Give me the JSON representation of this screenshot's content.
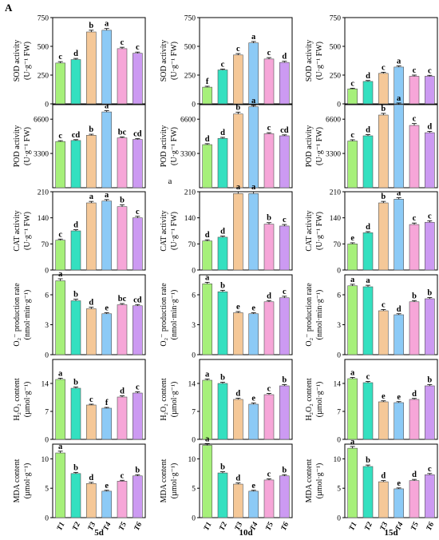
{
  "panel_label": "A",
  "chart_data": {
    "type": "bar",
    "categories": [
      "T1",
      "T2",
      "T3",
      "T4",
      "T5",
      "T6"
    ],
    "colors": [
      "#a6f07a",
      "#34e0c0",
      "#f5c898",
      "#8ccaf6",
      "#f6a6d8",
      "#cc9af2"
    ],
    "columns": [
      "5d",
      "10d",
      "15d"
    ],
    "rows": [
      {
        "ylabel_line1": "SOD activity",
        "ylabel_line2": "(U·g⁻¹ FW)",
        "ylim": [
          0,
          750
        ],
        "ticks": [
          0,
          250,
          500,
          750
        ],
        "panels": [
          {
            "values": [
              355,
              385,
              625,
              640,
              480,
              440
            ],
            "errors": [
              12,
              10,
              15,
              15,
              12,
              10
            ],
            "letters": [
              "c",
              "d",
              "b",
              "a",
              "c",
              "c"
            ]
          },
          {
            "values": [
              145,
              295,
              425,
              530,
              390,
              360
            ],
            "errors": [
              8,
              8,
              12,
              12,
              12,
              10
            ],
            "letters": [
              "f",
              "c",
              "c",
              "a",
              "c",
              "d"
            ]
          },
          {
            "values": [
              130,
              195,
              265,
              320,
              240,
              240
            ],
            "errors": [
              6,
              8,
              10,
              10,
              10,
              8
            ],
            "letters": [
              "c",
              "d",
              "c",
              "a",
              "c",
              "c"
            ]
          }
        ]
      },
      {
        "ylabel_line1": "POD activity",
        "ylabel_line2": "(U·g⁻¹ FW)",
        "ylim": [
          0,
          8000
        ],
        "ticks": [
          3300,
          6600
        ],
        "panels": [
          {
            "values": [
              4450,
              4550,
              5050,
              7300,
              4800,
              4650
            ],
            "errors": [
              80,
              80,
              100,
              120,
              100,
              80
            ],
            "letters": [
              "c",
              "cd",
              "b",
              "a",
              "bc",
              "cd"
            ]
          },
          {
            "values": [
              4150,
              4750,
              7100,
              7800,
              5200,
              5000
            ],
            "errors": [
              90,
              100,
              180,
              120,
              100,
              90
            ],
            "letters": [
              "d",
              "d",
              "b",
              "a",
              "c",
              "cd"
            ]
          },
          {
            "values": [
              4500,
              5000,
              7000,
              8000,
              6000,
              5300
            ],
            "errors": [
              120,
              120,
              160,
              160,
              180,
              120
            ],
            "letters": [
              "c",
              "d",
              "b",
              "a",
              "c",
              "d"
            ]
          }
        ],
        "annotation": {
          "panel": 1,
          "text": "a"
        }
      },
      {
        "ylabel_line1": "CAT activity",
        "ylabel_line2": "(U·g⁻¹ FW)",
        "ylim": [
          0,
          210
        ],
        "ticks": [
          0,
          70,
          140,
          210
        ],
        "panels": [
          {
            "values": [
              80,
              105,
              180,
              185,
              170,
              140
            ],
            "errors": [
              3,
              3,
              4,
              4,
              5,
              4
            ],
            "letters": [
              "c",
              "d",
              "a",
              "a",
              "b",
              "c"
            ]
          },
          {
            "values": [
              78,
              88,
              205,
              205,
              123,
              118
            ],
            "errors": [
              3,
              3,
              5,
              5,
              4,
              4
            ],
            "letters": [
              "d",
              "d",
              "a",
              "a",
              "b",
              "c"
            ]
          },
          {
            "values": [
              70,
              100,
              180,
              190,
              122,
              128
            ],
            "errors": [
              3,
              3,
              4,
              4,
              4,
              4
            ],
            "letters": [
              "e",
              "d",
              "b",
              "a",
              "c",
              "c"
            ]
          }
        ]
      },
      {
        "ylabel_line1": "O₂⁻ production rate",
        "ylabel_line2": "(nmol·min·g⁻¹)",
        "ylim": [
          0,
          8
        ],
        "ticks": [
          0,
          3,
          6
        ],
        "panels": [
          {
            "values": [
              7.4,
              5.4,
              4.6,
              4.1,
              5.0,
              4.9
            ],
            "errors": [
              0.2,
              0.15,
              0.15,
              0.1,
              0.12,
              0.12
            ],
            "letters": [
              "a",
              "b",
              "d",
              "e",
              "bc",
              "cd"
            ]
          },
          {
            "values": [
              7.1,
              6.3,
              4.2,
              4.1,
              5.3,
              5.7
            ],
            "errors": [
              0.15,
              0.15,
              0.12,
              0.1,
              0.12,
              0.15
            ],
            "letters": [
              "a",
              "b",
              "e",
              "e",
              "d",
              "c"
            ]
          },
          {
            "values": [
              6.9,
              6.8,
              4.4,
              4.0,
              5.3,
              5.6
            ],
            "errors": [
              0.15,
              0.15,
              0.12,
              0.1,
              0.12,
              0.12
            ],
            "letters": [
              "a",
              "a",
              "c",
              "d",
              "b",
              "b"
            ]
          }
        ]
      },
      {
        "ylabel_line1": "H₂O₂ content",
        "ylabel_line2": "(µmol·g⁻¹)",
        "ylim": [
          0,
          20
        ],
        "ticks": [
          0,
          7,
          14
        ],
        "panels": [
          {
            "values": [
              15.0,
              12.8,
              8.6,
              7.8,
              10.6,
              11.6
            ],
            "errors": [
              0.3,
              0.3,
              0.2,
              0.2,
              0.3,
              0.3
            ],
            "letters": [
              "a",
              "b",
              "c",
              "f",
              "d",
              "c"
            ]
          },
          {
            "values": [
              14.8,
              14.0,
              10.0,
              8.8,
              11.2,
              13.4
            ],
            "errors": [
              0.3,
              0.3,
              0.3,
              0.3,
              0.3,
              0.3
            ],
            "letters": [
              "a",
              "b",
              "d",
              "e",
              "c",
              "b"
            ]
          },
          {
            "values": [
              15.2,
              14.2,
              9.4,
              9.2,
              10.0,
              13.4
            ],
            "errors": [
              0.3,
              0.3,
              0.25,
              0.25,
              0.25,
              0.3
            ],
            "letters": [
              "a",
              "c",
              "e",
              "e",
              "d",
              "b"
            ]
          }
        ]
      },
      {
        "ylabel_line1": "MDA content",
        "ylabel_line2": "(µmol·g⁻¹)",
        "ylim": [
          0,
          12.5
        ],
        "ticks": [
          0,
          5,
          10
        ],
        "panels": [
          {
            "values": [
              11.0,
              7.5,
              5.8,
              4.5,
              6.2,
              7.1
            ],
            "errors": [
              0.3,
              0.2,
              0.2,
              0.15,
              0.15,
              0.2
            ],
            "letters": [
              "a",
              "b",
              "d",
              "e",
              "c",
              "b"
            ]
          },
          {
            "values": [
              12.3,
              7.6,
              5.7,
              4.5,
              6.4,
              7.1
            ],
            "errors": [
              0.3,
              0.2,
              0.2,
              0.15,
              0.2,
              0.2
            ],
            "letters": [
              "a",
              "b",
              "d",
              "e",
              "c",
              "b"
            ]
          },
          {
            "values": [
              11.8,
              8.7,
              6.1,
              4.9,
              6.3,
              7.3
            ],
            "errors": [
              0.3,
              0.25,
              0.2,
              0.15,
              0.2,
              0.2
            ],
            "letters": [
              "a",
              "b",
              "d",
              "e",
              "d",
              "c"
            ]
          }
        ]
      }
    ]
  }
}
